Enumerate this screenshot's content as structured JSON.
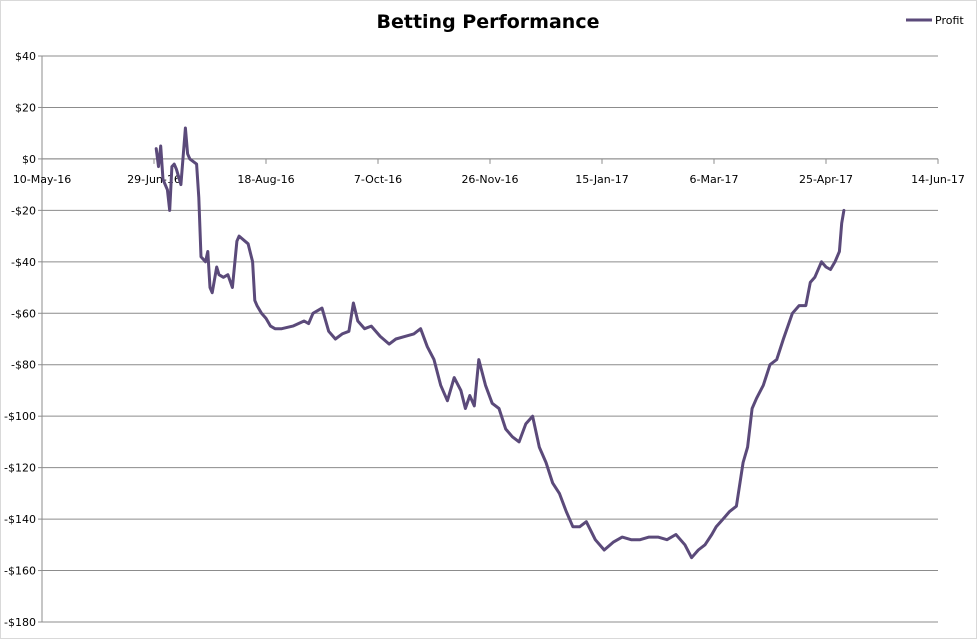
{
  "chart_data": {
    "type": "line",
    "title": "Betting Performance",
    "xlabel": "",
    "ylabel": "",
    "ylim": [
      -180,
      40
    ],
    "y_ticks": [
      40,
      20,
      0,
      -20,
      -40,
      -60,
      -80,
      -100,
      -120,
      -140,
      -160,
      -180
    ],
    "y_tick_labels": [
      "$40",
      "$20",
      "$0",
      "-$20",
      "-$40",
      "-$60",
      "-$80",
      "-$100",
      "-$120",
      "-$140",
      "-$160",
      "-$180"
    ],
    "xlim": [
      "2016-05-10",
      "2017-06-14"
    ],
    "x_ticks": [
      "2016-05-10",
      "2016-06-29",
      "2016-08-18",
      "2016-10-07",
      "2016-11-26",
      "2017-01-15",
      "2017-03-06",
      "2017-04-25",
      "2017-06-14"
    ],
    "x_tick_labels": [
      "10-May-16",
      "29-Jun-16",
      "18-Aug-16",
      "7-Oct-16",
      "26-Nov-16",
      "15-Jan-17",
      "6-Mar-17",
      "25-Apr-17",
      "14-Jun-17"
    ],
    "gridlines": "horizontal",
    "legend_position": "top-right",
    "series": [
      {
        "name": "Profit",
        "color": "#5B4A7A",
        "x": [
          "2016-06-30",
          "2016-07-01",
          "2016-07-02",
          "2016-07-03",
          "2016-07-05",
          "2016-07-06",
          "2016-07-07",
          "2016-07-08",
          "2016-07-09",
          "2016-07-11",
          "2016-07-13",
          "2016-07-14",
          "2016-07-15",
          "2016-07-18",
          "2016-07-19",
          "2016-07-20",
          "2016-07-22",
          "2016-07-23",
          "2016-07-24",
          "2016-07-25",
          "2016-07-27",
          "2016-07-28",
          "2016-07-30",
          "2016-08-01",
          "2016-08-03",
          "2016-08-05",
          "2016-08-06",
          "2016-08-10",
          "2016-08-12",
          "2016-08-13",
          "2016-08-14",
          "2016-08-16",
          "2016-08-18",
          "2016-08-20",
          "2016-08-22",
          "2016-08-25",
          "2016-08-30",
          "2016-09-04",
          "2016-09-06",
          "2016-09-08",
          "2016-09-12",
          "2016-09-15",
          "2016-09-18",
          "2016-09-21",
          "2016-09-24",
          "2016-09-26",
          "2016-09-28",
          "2016-10-01",
          "2016-10-04",
          "2016-10-08",
          "2016-10-12",
          "2016-10-15",
          "2016-10-19",
          "2016-10-23",
          "2016-10-26",
          "2016-10-29",
          "2016-11-01",
          "2016-11-04",
          "2016-11-07",
          "2016-11-10",
          "2016-11-13",
          "2016-11-15",
          "2016-11-17",
          "2016-11-19",
          "2016-11-21",
          "2016-11-24",
          "2016-11-27",
          "2016-11-30",
          "2016-12-03",
          "2016-12-06",
          "2016-12-09",
          "2016-12-12",
          "2016-12-15",
          "2016-12-18",
          "2016-12-21",
          "2016-12-24",
          "2016-12-27",
          "2016-12-30",
          "2017-01-02",
          "2017-01-05",
          "2017-01-08",
          "2017-01-12",
          "2017-01-16",
          "2017-01-20",
          "2017-01-24",
          "2017-01-28",
          "2017-02-01",
          "2017-02-05",
          "2017-02-09",
          "2017-02-13",
          "2017-02-17",
          "2017-02-21",
          "2017-02-24",
          "2017-02-27",
          "2017-03-02",
          "2017-03-05",
          "2017-03-07",
          "2017-03-10",
          "2017-03-13",
          "2017-03-16",
          "2017-03-19",
          "2017-03-21",
          "2017-03-23",
          "2017-03-25",
          "2017-03-28",
          "2017-03-31",
          "2017-04-03",
          "2017-04-06",
          "2017-04-08",
          "2017-04-10",
          "2017-04-13",
          "2017-04-16",
          "2017-04-18",
          "2017-04-20",
          "2017-04-23",
          "2017-04-25",
          "2017-04-27",
          "2017-04-29",
          "2017-05-01",
          "2017-05-02",
          "2017-05-03"
        ],
        "values": [
          4,
          -3,
          5,
          -8,
          -12,
          -20,
          -3,
          -2,
          -4,
          -10,
          12,
          2,
          0,
          -2,
          -15,
          -38,
          -40,
          -36,
          -50,
          -52,
          -42,
          -45,
          -46,
          -45,
          -50,
          -32,
          -30,
          -33,
          -40,
          -55,
          -57,
          -60,
          -62,
          -65,
          -66,
          -66,
          -65,
          -63,
          -64,
          -60,
          -58,
          -67,
          -70,
          -68,
          -67,
          -56,
          -63,
          -66,
          -65,
          -69,
          -72,
          -70,
          -69,
          -68,
          -66,
          -73,
          -78,
          -88,
          -94,
          -85,
          -90,
          -97,
          -92,
          -96,
          -78,
          -88,
          -95,
          -97,
          -105,
          -108,
          -110,
          -103,
          -100,
          -112,
          -118,
          -126,
          -130,
          -137,
          -143,
          -143,
          -141,
          -148,
          -152,
          -149,
          -147,
          -148,
          -148,
          -147,
          -147,
          -148,
          -146,
          -150,
          -155,
          -152,
          -150,
          -146,
          -143,
          -140,
          -137,
          -135,
          -118,
          -112,
          -97,
          -93,
          -88,
          -80,
          -78,
          -70,
          -65,
          -60,
          -57,
          -57,
          -48,
          -46,
          -40,
          -42,
          -43,
          -40,
          -36,
          -25,
          -20
        ]
      }
    ]
  }
}
